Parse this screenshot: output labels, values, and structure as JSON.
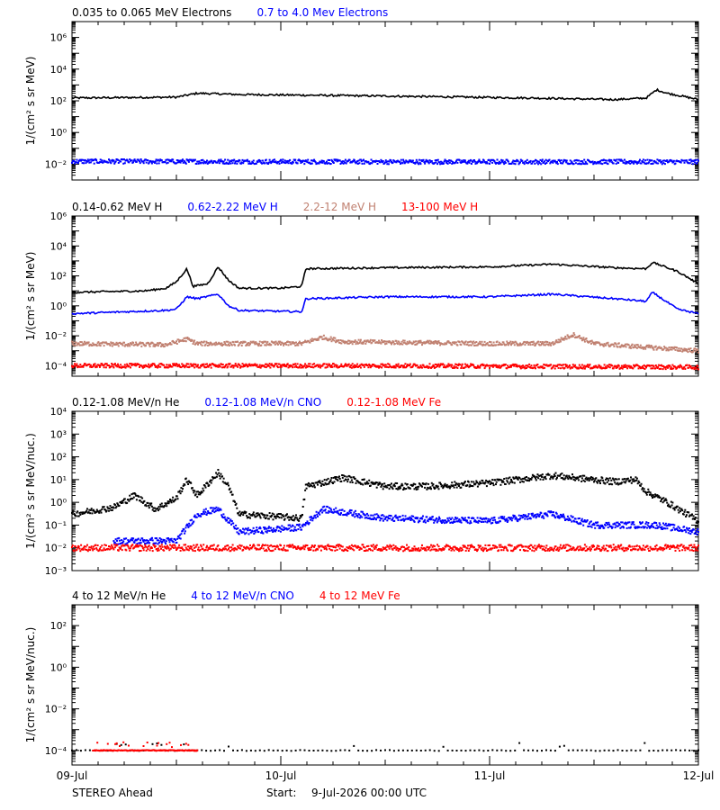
{
  "footer": {
    "spacecraft": "STEREO Ahead",
    "start_label": "Start:",
    "start_value": "9-Jul-2026 00:00 UTC"
  },
  "x_axis": {
    "tick_labels": [
      "09-Jul",
      "10-Jul",
      "11-Jul",
      "12-Jul"
    ],
    "tick_days": [
      0,
      1,
      2,
      3
    ]
  },
  "chart_data": [
    {
      "type": "scatter",
      "ylabel": "1/(cm² s sr MeV)",
      "yscale": "log",
      "ylim": [
        0.001,
        10000000
      ],
      "xlim": [
        0,
        3
      ],
      "y_tick_labels": [
        "10⁻²",
        "10⁰",
        "10²",
        "10⁴",
        "10⁶"
      ],
      "y_tick_values": [
        0.01,
        1,
        100,
        10000,
        1000000
      ],
      "series": [
        {
          "name": "0.035 to 0.065 MeV Electrons",
          "color": "#000000",
          "style": "line",
          "profile": [
            [
              0,
              150
            ],
            [
              0.5,
              170
            ],
            [
              0.6,
              300
            ],
            [
              0.8,
              250
            ],
            [
              1.5,
              200
            ],
            [
              2.2,
              150
            ],
            [
              2.6,
              120
            ],
            [
              2.75,
              150
            ],
            [
              2.8,
              500
            ],
            [
              2.85,
              300
            ],
            [
              2.92,
              200
            ],
            [
              3,
              120
            ]
          ]
        },
        {
          "name": "0.7 to 4.0 Mev Electrons",
          "color": "#0000ff",
          "style": "dots",
          "profile": [
            [
              0,
              0.015
            ],
            [
              1.5,
              0.014
            ],
            [
              3,
              0.014
            ]
          ]
        }
      ]
    },
    {
      "type": "scatter",
      "ylabel": "1/(cm² s sr MeV)",
      "yscale": "log",
      "ylim": [
        2e-05,
        1000000
      ],
      "xlim": [
        0,
        3
      ],
      "y_tick_labels": [
        "10⁻⁴",
        "10⁻²",
        "10⁰",
        "10²",
        "10⁴",
        "10⁶"
      ],
      "y_tick_values": [
        0.0001,
        0.01,
        1,
        100,
        10000,
        1000000
      ],
      "series": [
        {
          "name": "0.14-0.62 MeV H",
          "color": "#000000",
          "style": "line",
          "profile": [
            [
              0,
              8
            ],
            [
              0.35,
              10
            ],
            [
              0.45,
              15
            ],
            [
              0.5,
              40
            ],
            [
              0.55,
              300
            ],
            [
              0.58,
              20
            ],
            [
              0.65,
              30
            ],
            [
              0.7,
              400
            ],
            [
              0.75,
              50
            ],
            [
              0.8,
              15
            ],
            [
              1.0,
              15
            ],
            [
              1.1,
              20
            ],
            [
              1.12,
              300
            ],
            [
              1.5,
              350
            ],
            [
              2.0,
              400
            ],
            [
              2.3,
              600
            ],
            [
              2.6,
              350
            ],
            [
              2.75,
              300
            ],
            [
              2.78,
              800
            ],
            [
              2.9,
              200
            ],
            [
              3,
              30
            ]
          ]
        },
        {
          "name": "0.62-2.22 MeV H",
          "color": "#0000ff",
          "style": "line",
          "profile": [
            [
              0,
              0.3
            ],
            [
              0.45,
              0.5
            ],
            [
              0.5,
              0.6
            ],
            [
              0.55,
              4
            ],
            [
              0.6,
              3
            ],
            [
              0.7,
              6
            ],
            [
              0.75,
              1
            ],
            [
              0.8,
              0.5
            ],
            [
              1.1,
              0.4
            ],
            [
              1.12,
              3
            ],
            [
              1.5,
              4
            ],
            [
              2.0,
              4
            ],
            [
              2.3,
              6
            ],
            [
              2.6,
              3
            ],
            [
              2.75,
              2
            ],
            [
              2.78,
              8
            ],
            [
              2.9,
              0.6
            ],
            [
              3,
              0.3
            ]
          ]
        },
        {
          "name": "2.2-12 MeV H",
          "color": "#c08070",
          "style": "dots",
          "profile": [
            [
              0,
              0.003
            ],
            [
              0.45,
              0.0025
            ],
            [
              0.55,
              0.006
            ],
            [
              0.6,
              0.003
            ],
            [
              1.1,
              0.003
            ],
            [
              1.2,
              0.008
            ],
            [
              1.3,
              0.004
            ],
            [
              2.0,
              0.003
            ],
            [
              2.3,
              0.003
            ],
            [
              2.4,
              0.012
            ],
            [
              2.5,
              0.003
            ],
            [
              3,
              0.001
            ]
          ]
        },
        {
          "name": "13-100 MeV H",
          "color": "#ff0000",
          "style": "dots",
          "profile": [
            [
              0,
              0.0001
            ],
            [
              1.5,
              0.0001
            ],
            [
              3,
              8e-05
            ]
          ]
        }
      ]
    },
    {
      "type": "scatter",
      "ylabel": "1/(cm² s sr MeV/nuc.)",
      "yscale": "log",
      "ylim": [
        0.001,
        10000
      ],
      "xlim": [
        0,
        3
      ],
      "y_tick_labels": [
        "10⁻³",
        "10⁻²",
        "10⁻¹",
        "10⁰",
        "10¹",
        "10²",
        "10³",
        "10⁴"
      ],
      "y_tick_values": [
        0.001,
        0.01,
        0.1,
        1,
        10,
        100,
        1000,
        10000
      ],
      "series": [
        {
          "name": "0.12-1.08 MeV/n He",
          "color": "#000000",
          "style": "dots",
          "profile": [
            [
              0,
              0.3
            ],
            [
              0.2,
              0.6
            ],
            [
              0.3,
              2
            ],
            [
              0.4,
              0.5
            ],
            [
              0.5,
              1.5
            ],
            [
              0.55,
              10
            ],
            [
              0.6,
              2
            ],
            [
              0.7,
              20
            ],
            [
              0.75,
              5
            ],
            [
              0.8,
              0.3
            ],
            [
              1.1,
              0.2
            ],
            [
              1.12,
              5
            ],
            [
              1.3,
              12
            ],
            [
              1.5,
              5
            ],
            [
              1.7,
              5
            ],
            [
              2.0,
              7
            ],
            [
              2.3,
              15
            ],
            [
              2.6,
              8
            ],
            [
              2.7,
              10
            ],
            [
              2.75,
              3
            ],
            [
              2.85,
              1
            ],
            [
              3,
              0.15
            ]
          ]
        },
        {
          "name": "0.12-1.08 MeV/n CNO",
          "color": "#0000ff",
          "style": "dots",
          "profile": [
            [
              0.2,
              0.02
            ],
            [
              0.5,
              0.02
            ],
            [
              0.6,
              0.3
            ],
            [
              0.7,
              0.5
            ],
            [
              0.8,
              0.05
            ],
            [
              1.1,
              0.08
            ],
            [
              1.2,
              0.5
            ],
            [
              1.5,
              0.2
            ],
            [
              2.0,
              0.15
            ],
            [
              2.3,
              0.3
            ],
            [
              2.5,
              0.1
            ],
            [
              2.8,
              0.1
            ],
            [
              3,
              0.05
            ]
          ]
        },
        {
          "name": "0.12-1.08 MeV Fe",
          "color": "#ff0000",
          "style": "dots",
          "profile": [
            [
              0,
              0.01
            ],
            [
              1.5,
              0.01
            ],
            [
              3,
              0.01
            ]
          ]
        }
      ]
    },
    {
      "type": "scatter",
      "ylabel": "1/(cm² s sr MeV/nuc.)",
      "yscale": "log",
      "ylim": [
        2e-05,
        1000
      ],
      "xlim": [
        0,
        3
      ],
      "y_tick_labels": [
        "10⁻⁴",
        "10⁻²",
        "10⁰",
        "10²"
      ],
      "y_tick_values": [
        0.0001,
        0.01,
        1,
        100
      ],
      "series": [
        {
          "name": "4 to 12 MeV/n He",
          "color": "#000000",
          "style": "sparse",
          "profile": [
            [
              0,
              0.0001
            ],
            [
              3,
              0.0001
            ]
          ]
        },
        {
          "name": "4 to 12 MeV/n CNO",
          "color": "#0000ff",
          "style": "none",
          "profile": []
        },
        {
          "name": "4 to 12 MeV Fe",
          "color": "#ff0000",
          "style": "sparse",
          "profile": [
            [
              0.1,
              0.0001
            ],
            [
              0.6,
              0.0001
            ]
          ]
        }
      ]
    }
  ]
}
